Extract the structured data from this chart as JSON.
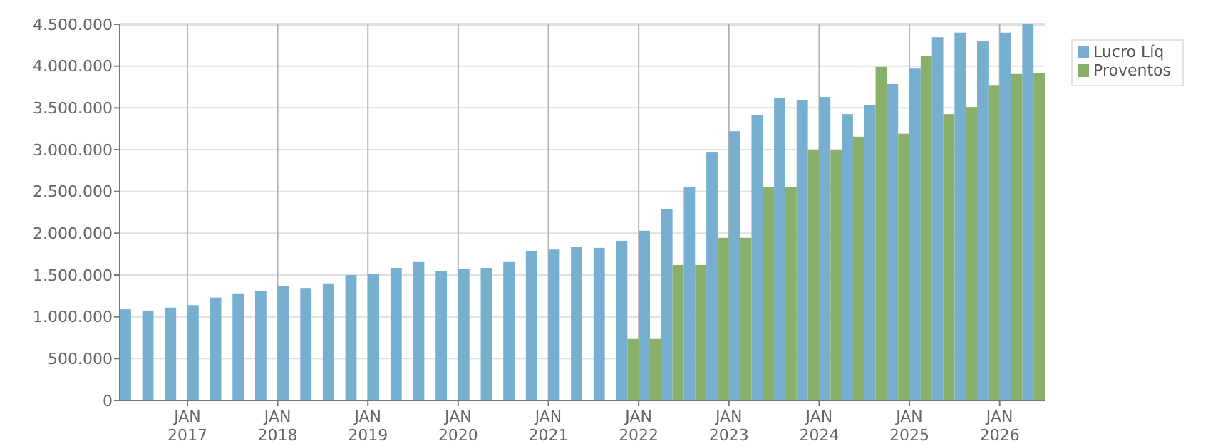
{
  "chart_data": {
    "type": "bar",
    "categories": [
      null,
      null,
      null,
      "JAN\n2017",
      null,
      null,
      null,
      "JAN\n2018",
      null,
      null,
      null,
      "JAN\n2019",
      null,
      null,
      null,
      "JAN\n2020",
      null,
      null,
      null,
      "JAN\n2021",
      null,
      null,
      null,
      "JAN\n2022",
      null,
      null,
      null,
      "JAN\n2023",
      null,
      null,
      null,
      "JAN\n2024",
      null,
      null,
      null,
      "JAN\n2025",
      null,
      null,
      null,
      "JAN\n2026",
      null,
      null
    ],
    "series": [
      {
        "name": "Lucro Líq",
        "color": "#77afd1",
        "values": [
          1090000,
          1075000,
          1110000,
          1140000,
          1230000,
          1280000,
          1310000,
          1365000,
          1345000,
          1400000,
          1500000,
          1515000,
          1585000,
          1655000,
          1550000,
          1570000,
          1585000,
          1655000,
          1790000,
          1805000,
          1840000,
          1825000,
          1910000,
          2030000,
          2285000,
          2555000,
          2965000,
          3220000,
          3410000,
          3615000,
          3595000,
          3630000,
          3425000,
          3530000,
          3785000,
          3970000,
          4345000,
          4400000,
          4295000,
          4400000,
          4500000,
          null
        ]
      },
      {
        "name": "Proventos",
        "color": "#88b06a",
        "values": [
          null,
          null,
          null,
          null,
          null,
          null,
          null,
          null,
          null,
          null,
          null,
          null,
          null,
          null,
          null,
          null,
          null,
          null,
          null,
          null,
          null,
          null,
          null,
          735000,
          735000,
          1620000,
          1620000,
          1945000,
          1945000,
          2555000,
          2555000,
          3000000,
          3000000,
          3155000,
          3990000,
          3190000,
          4125000,
          3425000,
          3510000,
          3765000,
          3905000,
          3920000
        ]
      }
    ],
    "ylim": [
      0,
      4500000
    ],
    "yticks": [
      0,
      {
        "value": 500000,
        "label": "500.000"
      },
      {
        "value": 1000000,
        "label": "1.000.000"
      },
      {
        "value": 1500000,
        "label": "1.500.000"
      },
      {
        "value": 2000000,
        "label": "2.000.000"
      },
      {
        "value": 2500000,
        "label": "2.500.000"
      },
      {
        "value": 3000000,
        "label": "3.000.000"
      },
      {
        "value": 3500000,
        "label": "3.500.000"
      },
      {
        "value": 4000000,
        "label": "4.000.000"
      },
      {
        "value": 4500000,
        "label": "4.500.000"
      }
    ],
    "grid": true,
    "legend": "top right"
  }
}
